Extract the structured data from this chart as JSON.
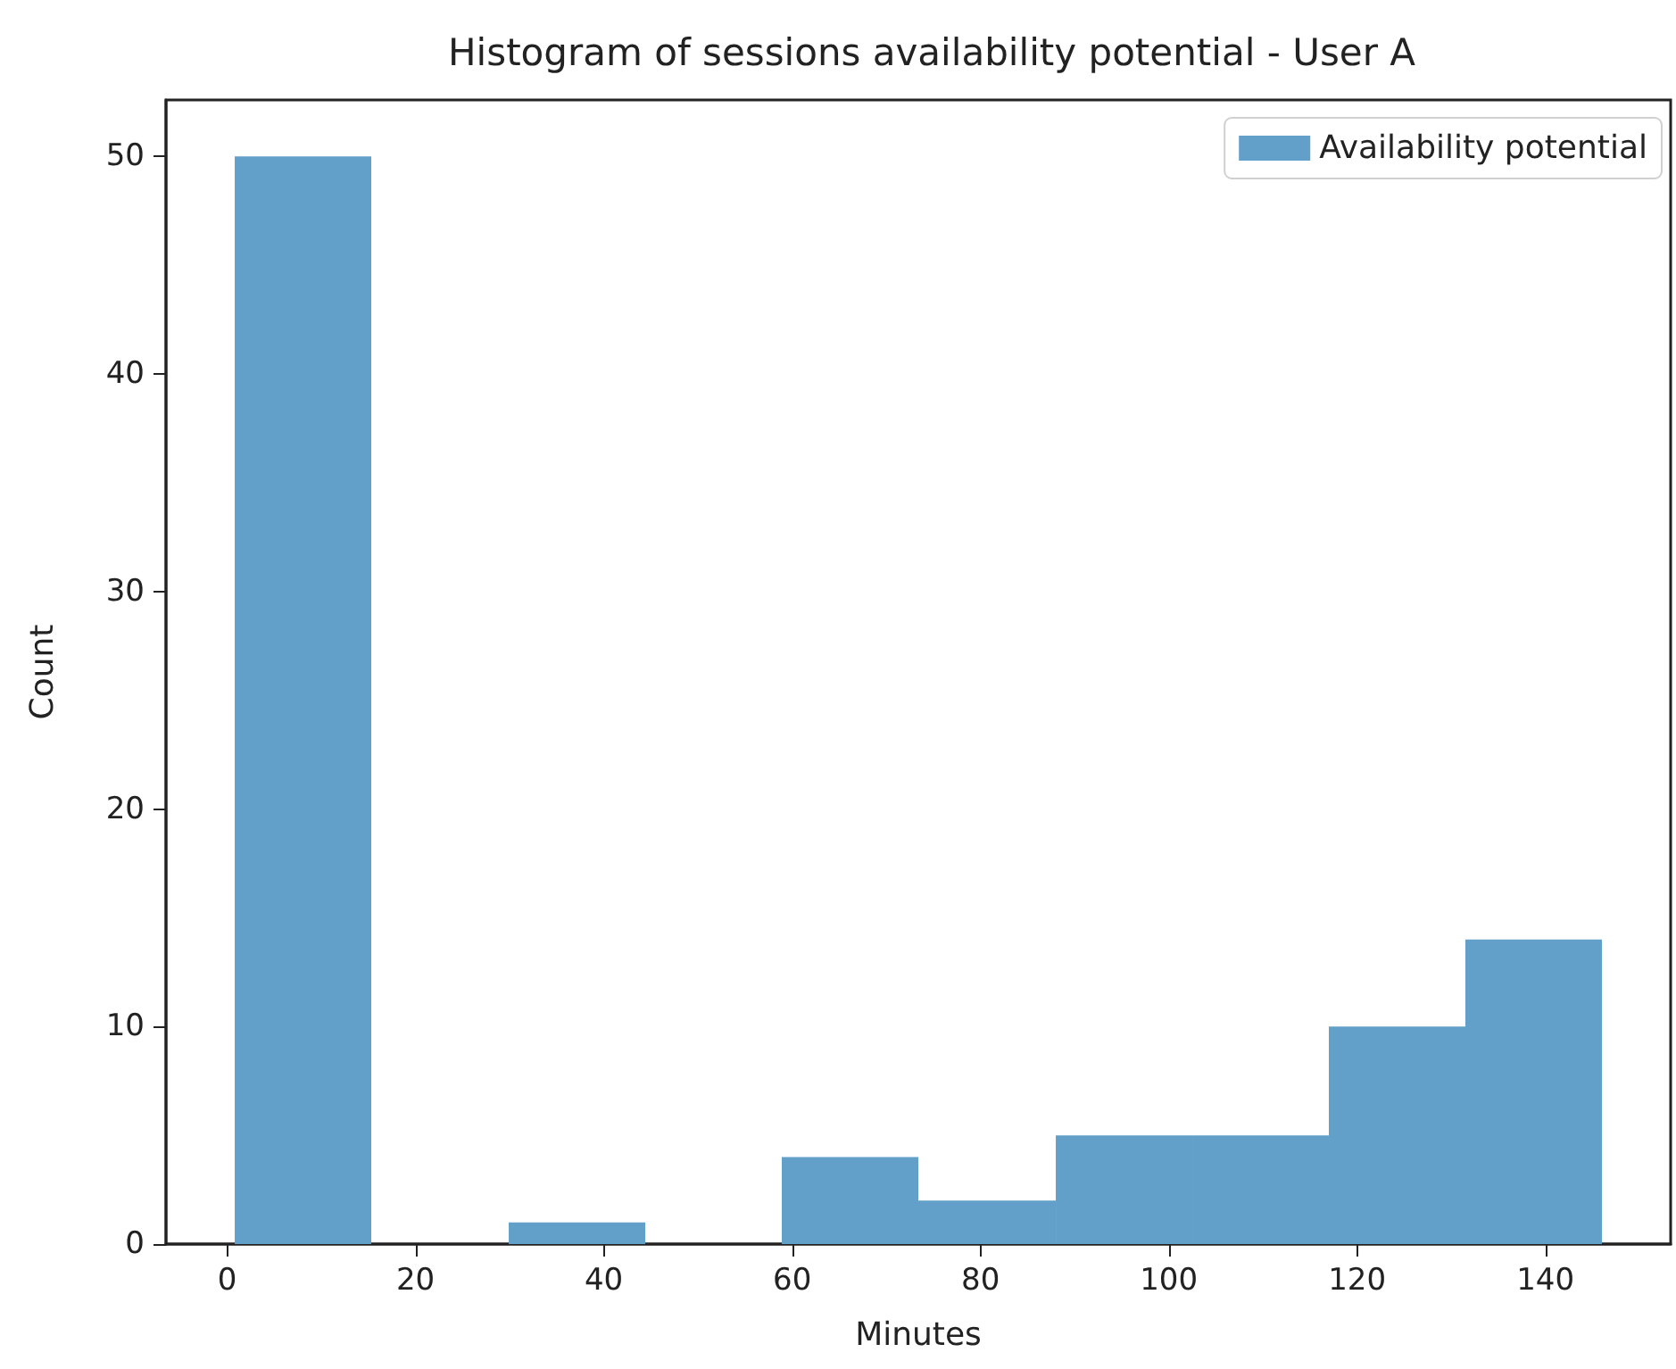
{
  "chart_data": {
    "type": "histogram",
    "title": "Histogram of sessions availability potential - User A",
    "xlabel": "Minutes",
    "ylabel": "Count",
    "bins": [
      0.8,
      15.3,
      29.9,
      44.4,
      58.9,
      73.4,
      88.0,
      102.5,
      117.0,
      131.5,
      146.0
    ],
    "series": [
      {
        "name": "Availability potential",
        "color": "#62a0ca",
        "values": [
          50,
          0,
          1,
          0,
          4,
          2,
          5,
          5,
          10,
          14
        ]
      }
    ],
    "xlim": [
      -6.5,
      153.3
    ],
    "xticks": [
      0,
      20,
      40,
      60,
      80,
      100,
      120,
      140
    ],
    "ylim": [
      0,
      52.6
    ],
    "yticks": [
      0,
      10,
      20,
      30,
      40,
      50
    ],
    "grid": false,
    "legend": "top right"
  }
}
